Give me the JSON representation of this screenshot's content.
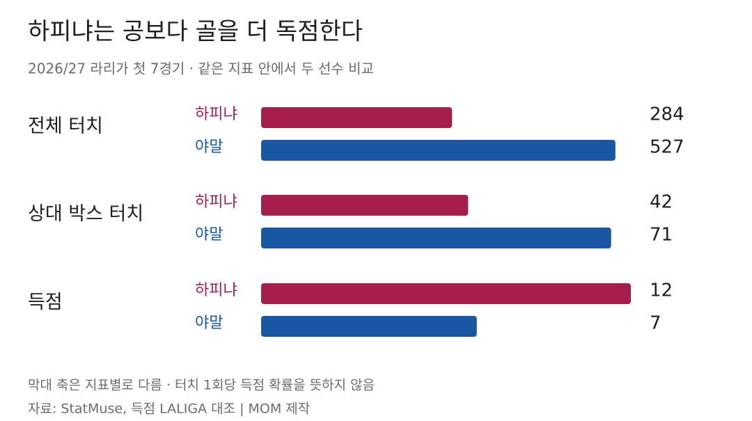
{
  "chart_data": {
    "type": "grouped-hbar",
    "title": "하피냐는 공보다 골을 더 독점한다",
    "subtitle": "2026/27 라리가 첫 7경기 · 같은 지표 안에서 두 선수 비교",
    "categories": [
      "전체 터치",
      "상대 박스 터치",
      "득점"
    ],
    "series": [
      {
        "name": "하피냐",
        "color": "#a51f4d",
        "values": [
          284,
          42,
          12
        ]
      },
      {
        "name": "야말",
        "color": "#1a57a3",
        "values": [
          527,
          71,
          7
        ]
      }
    ],
    "xlims": [
      [
        0,
        550
      ],
      [
        0,
        75
      ],
      [
        0,
        12
      ]
    ],
    "notes": [
      "막대 축은 지표별로 다름 · 터치 1회당 득점 확률을 뜻하지 않음",
      "자료: StatMuse, 득점 LALIGA 대조 | MOM 제작"
    ]
  }
}
